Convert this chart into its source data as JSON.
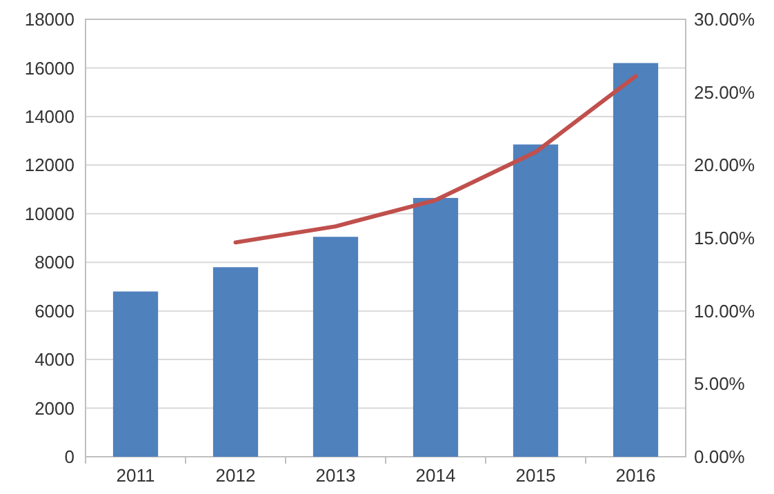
{
  "chart_data": {
    "type": "bar",
    "categories": [
      "2011",
      "2012",
      "2013",
      "2014",
      "2015",
      "2016"
    ],
    "series": [
      {
        "color": "#4f81bd",
        "values": [
          6800,
          7800,
          9050,
          10650,
          12850,
          16200
        ]
      },
      {
        "type": "line",
        "axis": "y2",
        "color": "#c0504d",
        "values": [
          null,
          14.7,
          15.8,
          17.6,
          20.9,
          26.1
        ]
      }
    ],
    "ylim": [
      0,
      18000
    ],
    "yticks": [
      0,
      2000,
      4000,
      6000,
      8000,
      10000,
      12000,
      14000,
      16000,
      18000
    ],
    "y2lim": [
      0,
      30
    ],
    "y2ticks": [
      {
        "value": 0,
        "label": "0.00%"
      },
      {
        "value": 5,
        "label": "5.00%"
      },
      {
        "value": 10,
        "label": "10.00%"
      },
      {
        "value": 15,
        "label": "15.00%"
      },
      {
        "value": 20,
        "label": "20.00%"
      },
      {
        "value": 25,
        "label": "25.00%"
      },
      {
        "value": 30,
        "label": "30.00%"
      }
    ],
    "grid": "y",
    "marker": "none",
    "line_style": "solid"
  }
}
